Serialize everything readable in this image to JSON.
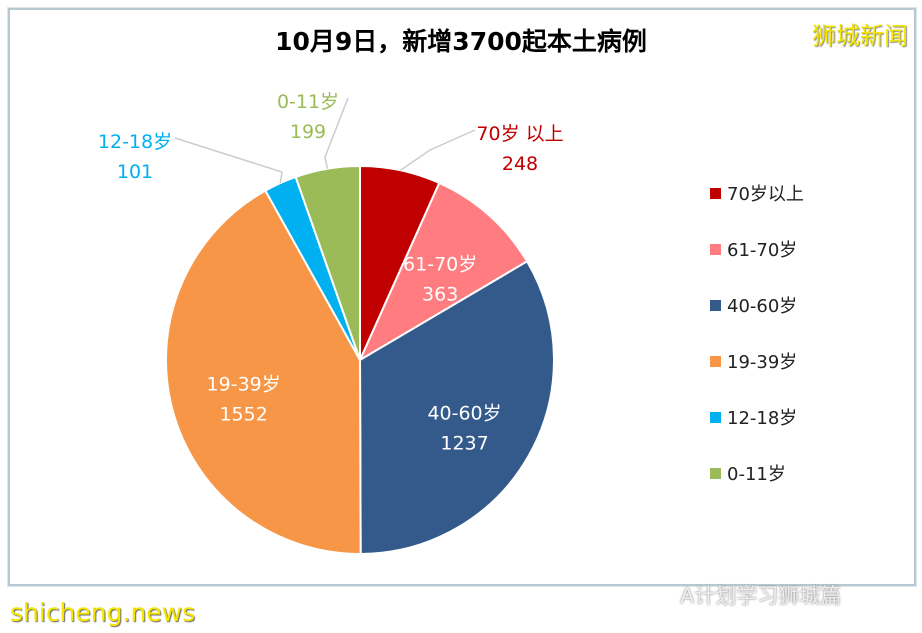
{
  "title": "10月9日，新增3700起本土病例",
  "brand": "狮城新闻",
  "watermark": "shicheng.news",
  "wechat": "A计划学习狮城篇",
  "chart_data": {
    "type": "pie",
    "title": "10月9日，新增3700起本土病例",
    "legend_position": "right",
    "slices": [
      {
        "label": "70岁以上",
        "value": 248,
        "color": "#C00000"
      },
      {
        "label": "61-70岁",
        "value": 363,
        "color": "#FF7C80"
      },
      {
        "label": "40-60岁",
        "value": 1237,
        "color": "#345A8C"
      },
      {
        "label": "19-39岁",
        "value": 1552,
        "color": "#F79646"
      },
      {
        "label": "12-18岁",
        "value": 101,
        "color": "#00B0F0"
      },
      {
        "label": "0-11岁",
        "value": 199,
        "color": "#9BBB59"
      }
    ]
  }
}
